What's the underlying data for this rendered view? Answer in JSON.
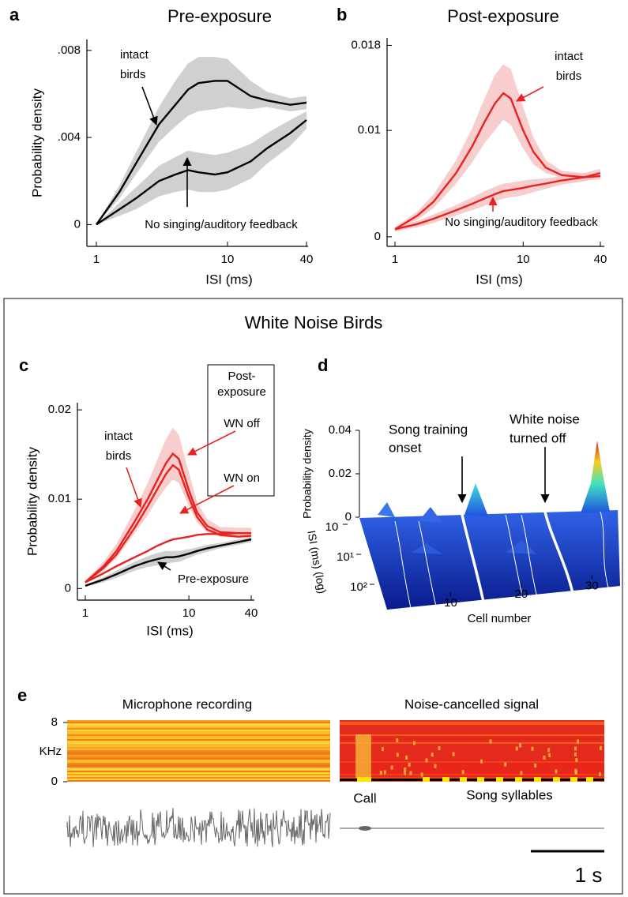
{
  "section_title": "White Noise Birds",
  "chart_data": [
    {
      "type": "line",
      "panel": "a",
      "title": "Pre-exposure",
      "xlabel": "ISI (ms)",
      "ylabel": "Probability density",
      "xscale": "log",
      "xlim": [
        1,
        40
      ],
      "xticks": [
        1,
        10,
        40
      ],
      "ylim": [
        -0.001,
        0.0085
      ],
      "yticks": [
        0,
        {
          "value": 0.004,
          "label": ".004"
        },
        {
          "value": 0.008,
          "label": ".008"
        }
      ],
      "x": [
        1,
        1.5,
        2,
        3,
        4,
        5,
        6,
        8,
        10,
        15,
        20,
        30,
        40
      ],
      "series": [
        {
          "color": "#000000",
          "band_color": "#c8c8c8",
          "values": [
            0,
            0.0015,
            0.0028,
            0.0046,
            0.0055,
            0.0062,
            0.0065,
            0.0066,
            0.0066,
            0.0059,
            0.0057,
            0.0055,
            0.0056
          ],
          "lower": [
            0,
            0.0012,
            0.0023,
            0.0038,
            0.0045,
            0.005,
            0.0052,
            0.0053,
            0.0054,
            0.0053,
            0.0054,
            0.0052,
            0.0053
          ],
          "upper": [
            0,
            0.0018,
            0.0033,
            0.0054,
            0.0066,
            0.0074,
            0.0077,
            0.0077,
            0.0076,
            0.0066,
            0.0061,
            0.0058,
            0.0059
          ]
        },
        {
          "color": "#000000",
          "band_color": "#c8c8c8",
          "values": [
            0,
            0.0007,
            0.0012,
            0.002,
            0.0023,
            0.0025,
            0.0024,
            0.0023,
            0.0024,
            0.0029,
            0.0035,
            0.0042,
            0.0048
          ],
          "lower": [
            0,
            0.0004,
            0.0007,
            0.0013,
            0.0015,
            0.0016,
            0.0015,
            0.0015,
            0.0016,
            0.0021,
            0.0028,
            0.0036,
            0.0044
          ],
          "upper": [
            0,
            0.001,
            0.0017,
            0.0027,
            0.0031,
            0.0034,
            0.0033,
            0.0032,
            0.0033,
            0.0037,
            0.0042,
            0.0048,
            0.0052
          ]
        }
      ],
      "annotations": [
        {
          "lines": [
            "intact",
            "birds"
          ]
        },
        {
          "lines": [
            "No singing/auditory feedback"
          ]
        }
      ]
    },
    {
      "type": "line",
      "panel": "b",
      "title": "Post-exposure",
      "xlabel": "ISI (ms)",
      "xscale": "log",
      "xlim": [
        1,
        40
      ],
      "xticks": [
        1,
        10,
        40
      ],
      "ylim": [
        -0.0009,
        0.0187
      ],
      "yticks": [
        0,
        0.01,
        0.018
      ],
      "x": [
        1,
        1.5,
        2,
        3,
        4,
        5,
        6,
        7,
        8,
        10,
        12,
        15,
        20,
        30,
        40
      ],
      "series": [
        {
          "color": "#e8231f",
          "band_color": "#f7c4c4",
          "values": [
            0.0007,
            0.002,
            0.0033,
            0.006,
            0.0085,
            0.0108,
            0.0125,
            0.0135,
            0.013,
            0.01,
            0.008,
            0.0065,
            0.0058,
            0.0056,
            0.0057
          ],
          "lower": [
            0.0005,
            0.0016,
            0.0027,
            0.005,
            0.007,
            0.0088,
            0.01,
            0.011,
            0.0105,
            0.0083,
            0.0068,
            0.006,
            0.0055,
            0.0053,
            0.0054
          ],
          "upper": [
            0.0009,
            0.0024,
            0.004,
            0.0072,
            0.0102,
            0.013,
            0.0152,
            0.0162,
            0.0158,
            0.0122,
            0.0094,
            0.0072,
            0.0062,
            0.006,
            0.0061
          ]
        },
        {
          "color": "#e8231f",
          "band_color": "#f7c4c4",
          "values": [
            0.0007,
            0.0012,
            0.0017,
            0.0025,
            0.0031,
            0.0036,
            0.004,
            0.0043,
            0.0044,
            0.0046,
            0.0048,
            0.005,
            0.0053,
            0.0056,
            0.006
          ],
          "lower": [
            0.0005,
            0.0009,
            0.0013,
            0.002,
            0.0025,
            0.0029,
            0.0033,
            0.0036,
            0.0037,
            0.0039,
            0.0042,
            0.0045,
            0.0049,
            0.0052,
            0.0056
          ],
          "upper": [
            0.0009,
            0.0015,
            0.0021,
            0.003,
            0.0037,
            0.0043,
            0.0047,
            0.005,
            0.0051,
            0.0053,
            0.0054,
            0.0055,
            0.0057,
            0.006,
            0.0064
          ]
        }
      ],
      "annotations": [
        {
          "lines": [
            "intact",
            "birds"
          ]
        },
        {
          "lines": [
            "No singing/auditory feedback"
          ]
        }
      ]
    },
    {
      "type": "line",
      "panel": "c",
      "xlabel": "ISI (ms)",
      "ylabel": "Probability density",
      "xscale": "log",
      "xlim": [
        1,
        40
      ],
      "xticks": [
        1,
        10,
        40
      ],
      "ylim": [
        -0.0013,
        0.0208
      ],
      "yticks": [
        0,
        0.01,
        0.02
      ],
      "x": [
        1,
        1.5,
        2,
        3,
        4,
        5,
        6,
        7,
        8,
        10,
        12,
        15,
        20,
        30,
        40
      ],
      "series": [
        {
          "name": "WN off",
          "color": "#e8231f",
          "band_color": "#f7c4c4",
          "values": [
            0.0007,
            0.0025,
            0.0042,
            0.0075,
            0.01,
            0.0122,
            0.014,
            0.0151,
            0.0145,
            0.011,
            0.0085,
            0.007,
            0.0063,
            0.0062,
            0.0062
          ],
          "lower": [
            0.0005,
            0.002,
            0.0034,
            0.0062,
            0.0082,
            0.01,
            0.0113,
            0.0122,
            0.0118,
            0.0092,
            0.0074,
            0.0063,
            0.0058,
            0.0057,
            0.0057
          ],
          "upper": [
            0.0009,
            0.003,
            0.005,
            0.0088,
            0.0118,
            0.0145,
            0.0167,
            0.018,
            0.0172,
            0.013,
            0.0097,
            0.0078,
            0.0069,
            0.0068,
            0.0068
          ]
        },
        {
          "color": "#e8231f",
          "values": [
            0.0007,
            0.0023,
            0.0038,
            0.0068,
            0.0092,
            0.0112,
            0.0128,
            0.0138,
            0.0133,
            0.0102,
            0.008,
            0.0066,
            0.006,
            0.0058,
            0.0059
          ]
        },
        {
          "name": "WN on",
          "color": "#e8231f",
          "values": [
            0.0007,
            0.0017,
            0.0025,
            0.0035,
            0.0042,
            0.0048,
            0.0052,
            0.0055,
            0.0056,
            0.0058,
            0.006,
            0.0061,
            0.0061,
            0.0062,
            0.0062
          ]
        },
        {
          "name": "Pre-exposure",
          "color": "#000000",
          "band_color": "#c8c8c8",
          "values": [
            0.0003,
            0.001,
            0.0016,
            0.0025,
            0.003,
            0.0033,
            0.0035,
            0.0035,
            0.0036,
            0.0039,
            0.0042,
            0.0045,
            0.0048,
            0.0052,
            0.0055
          ],
          "lower": [
            0.0002,
            0.0007,
            0.0012,
            0.002,
            0.0024,
            0.0026,
            0.0028,
            0.0029,
            0.003,
            0.0034,
            0.0038,
            0.0041,
            0.0045,
            0.0049,
            0.0052
          ],
          "upper": [
            0.0004,
            0.0013,
            0.002,
            0.003,
            0.0036,
            0.004,
            0.0042,
            0.0042,
            0.0042,
            0.0044,
            0.0046,
            0.0049,
            0.0051,
            0.0055,
            0.0058
          ]
        }
      ],
      "annotations": [
        {
          "lines": [
            "intact",
            "birds"
          ]
        },
        {
          "lines": [
            "Post-",
            "exposure"
          ]
        }
      ]
    },
    {
      "type": "surface",
      "panel": "d",
      "zlabel": "Probability density",
      "zlim": [
        0,
        0.04
      ],
      "zticks": [
        0,
        0.02,
        0.04
      ],
      "ylabel": "ISI (ms) (log)",
      "ylim": [
        0,
        2
      ],
      "yticks": [
        {
          "value": 0,
          "label": "10"
        },
        {
          "value": 1,
          "label": "10¹"
        },
        {
          "value": 2,
          "label": "10²"
        }
      ],
      "xlabel": "Cell number",
      "xlim": [
        1,
        34
      ],
      "xticks": [
        10,
        20,
        30
      ],
      "annotations": [
        {
          "lines": [
            "Song training",
            "onset"
          ]
        },
        {
          "lines": [
            "White noise",
            "turned off"
          ]
        }
      ]
    },
    {
      "type": "spectrogram",
      "panel": "e",
      "titles": [
        "Microphone recording",
        "Noise-cancelled signal"
      ],
      "ylabel": "KHz",
      "ylim": [
        0,
        8
      ],
      "yticks": [
        8,
        0
      ],
      "annotations": [
        {
          "lines": [
            "Call"
          ]
        },
        {
          "lines": [
            "Song syllables"
          ]
        }
      ],
      "scale_bar": "1 s"
    }
  ]
}
